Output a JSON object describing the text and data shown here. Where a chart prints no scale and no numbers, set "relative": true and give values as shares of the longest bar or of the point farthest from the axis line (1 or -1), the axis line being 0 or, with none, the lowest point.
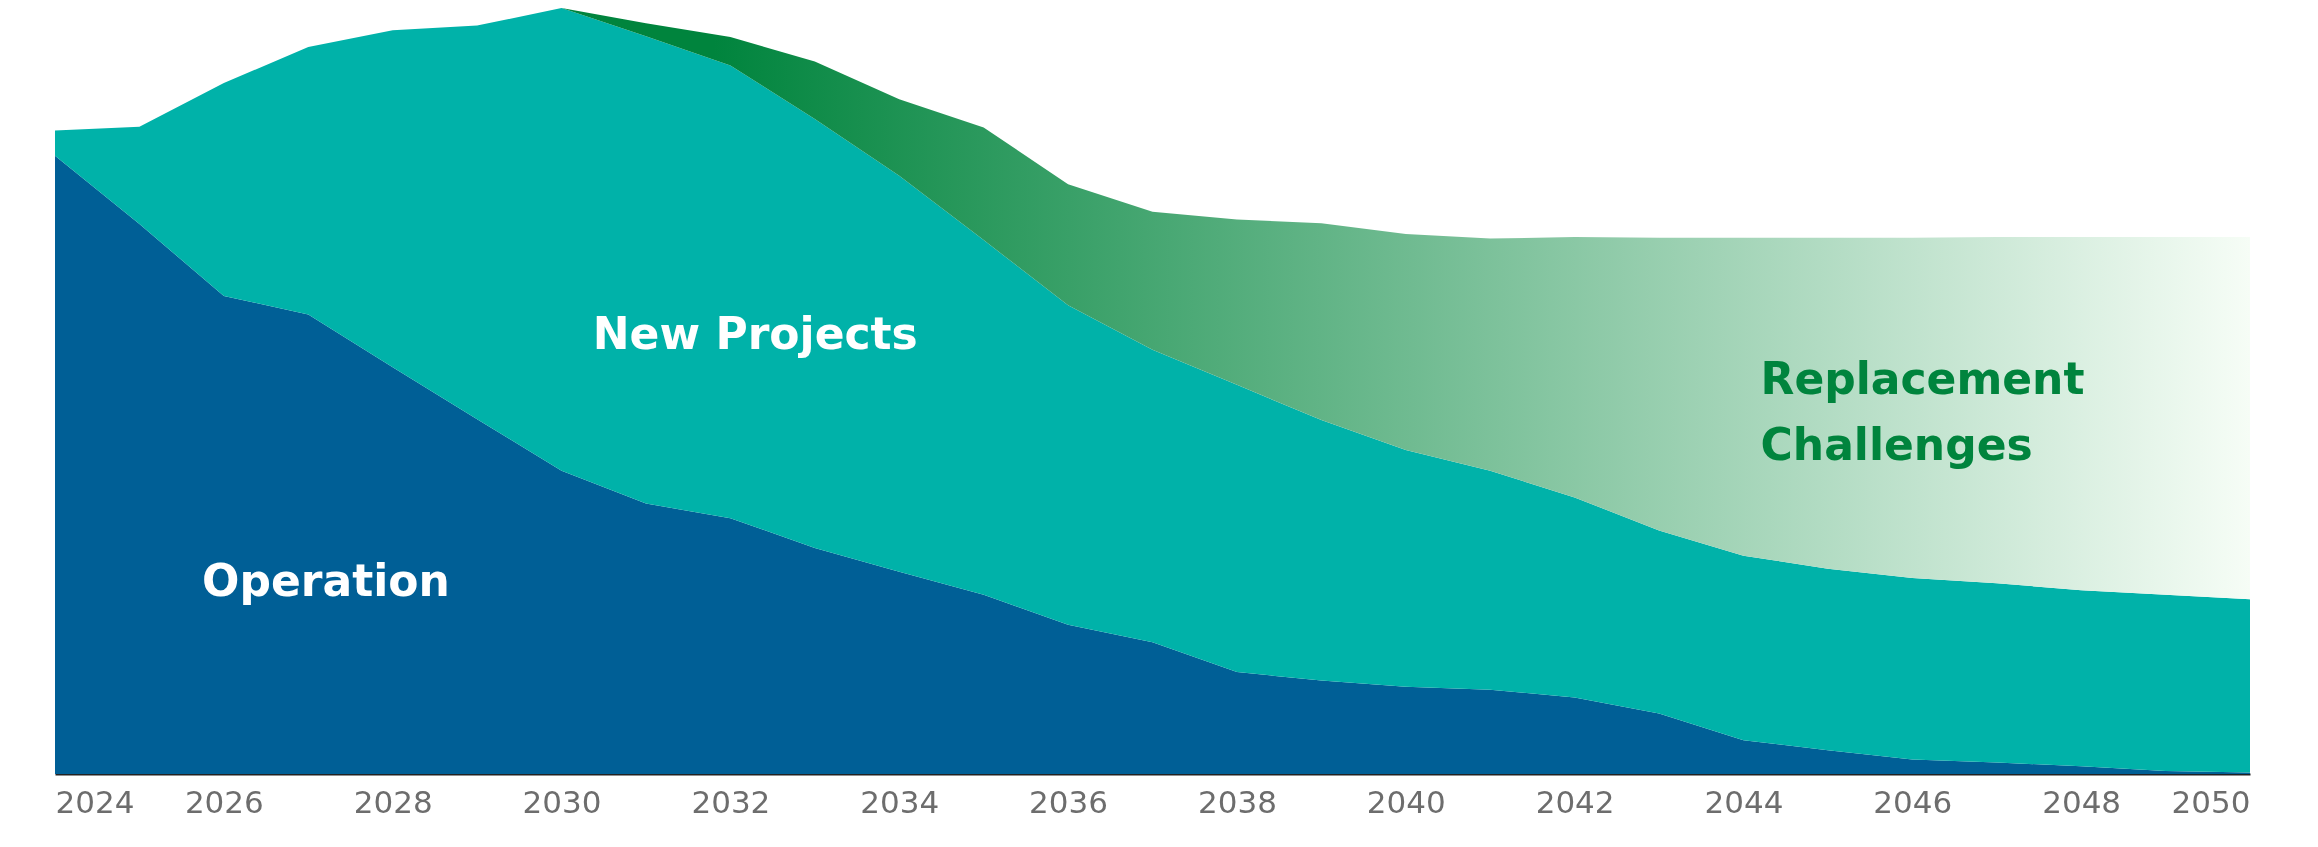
{
  "chart_data": {
    "type": "area",
    "stacked": true,
    "relative": true,
    "x": [
      2024,
      2025,
      2026,
      2027,
      2028,
      2029,
      2030,
      2031,
      2032,
      2033,
      2034,
      2035,
      2036,
      2037,
      2038,
      2039,
      2040,
      2041,
      2042,
      2043,
      2044,
      2045,
      2046,
      2047,
      2048,
      2049,
      2050
    ],
    "xlim": [
      2024,
      2050
    ],
    "xticks": [
      2024,
      2026,
      2028,
      2030,
      2032,
      2034,
      2036,
      2038,
      2040,
      2042,
      2044,
      2046,
      2048,
      2050
    ],
    "grid": false,
    "series": [
      {
        "name": "Operation",
        "color": "#005f96",
        "values": [
          0.807,
          0.718,
          0.624,
          0.6,
          0.531,
          0.463,
          0.396,
          0.353,
          0.334,
          0.295,
          0.264,
          0.234,
          0.195,
          0.172,
          0.133,
          0.122,
          0.114,
          0.11,
          0.1,
          0.079,
          0.044,
          0.031,
          0.019,
          0.015,
          0.01,
          0.004,
          0.002
        ]
      },
      {
        "name": "New Projects",
        "color": "#00b2a9",
        "values": [
          0.033,
          0.127,
          0.278,
          0.349,
          0.44,
          0.514,
          0.604,
          0.61,
          0.591,
          0.56,
          0.517,
          0.463,
          0.417,
          0.382,
          0.375,
          0.34,
          0.309,
          0.286,
          0.261,
          0.239,
          0.241,
          0.237,
          0.237,
          0.234,
          0.23,
          0.23,
          0.226
        ]
      },
      {
        "name": "Replacement Challenges",
        "color": "#00843d",
        "values": [
          0,
          0,
          0,
          0,
          0,
          0,
          0,
          0.017,
          0.037,
          0.075,
          0.1,
          0.147,
          0.158,
          0.18,
          0.216,
          0.257,
          0.282,
          0.303,
          0.34,
          0.382,
          0.415,
          0.432,
          0.444,
          0.452,
          0.461,
          0.467,
          0.473
        ]
      }
    ]
  }
}
